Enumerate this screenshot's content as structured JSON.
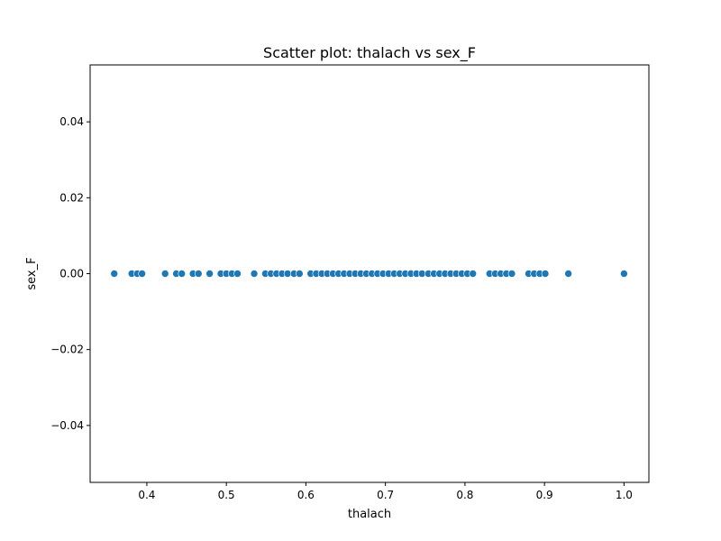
{
  "chart_data": {
    "type": "scatter",
    "title": "Scatter plot: thalach vs sex_F",
    "xlabel": "thalach",
    "ylabel": "sex_F",
    "xlim": [
      0.3287,
      1.0313
    ],
    "ylim": [
      -0.055,
      0.055
    ],
    "xticks": [
      0.4,
      0.5,
      0.6,
      0.7,
      0.8,
      0.9,
      1.0
    ],
    "xtick_labels": [
      "0.4",
      "0.5",
      "0.6",
      "0.7",
      "0.8",
      "0.9",
      "1.0"
    ],
    "yticks": [
      -0.04,
      -0.02,
      0.0,
      0.02,
      0.04
    ],
    "ytick_labels": [
      "−0.04",
      "−0.02",
      "0.00",
      "0.02",
      "0.04"
    ],
    "grid": false,
    "marker_color": "#1f77b4",
    "points": {
      "x": [
        0.359,
        0.381,
        0.388,
        0.394,
        0.423,
        0.437,
        0.444,
        0.458,
        0.465,
        0.479,
        0.493,
        0.5,
        0.507,
        0.514,
        0.535,
        0.549,
        0.556,
        0.563,
        0.57,
        0.577,
        0.585,
        0.592,
        0.606,
        0.613,
        0.62,
        0.627,
        0.634,
        0.641,
        0.648,
        0.655,
        0.662,
        0.669,
        0.676,
        0.683,
        0.69,
        0.697,
        0.704,
        0.711,
        0.718,
        0.725,
        0.732,
        0.739,
        0.746,
        0.754,
        0.761,
        0.768,
        0.775,
        0.782,
        0.789,
        0.796,
        0.803,
        0.81,
        0.831,
        0.838,
        0.845,
        0.852,
        0.859,
        0.88,
        0.887,
        0.894,
        0.901,
        0.93,
        1.0
      ],
      "y": [
        0,
        0,
        0,
        0,
        0,
        0,
        0,
        0,
        0,
        0,
        0,
        0,
        0,
        0,
        0,
        0,
        0,
        0,
        0,
        0,
        0,
        0,
        0,
        0,
        0,
        0,
        0,
        0,
        0,
        0,
        0,
        0,
        0,
        0,
        0,
        0,
        0,
        0,
        0,
        0,
        0,
        0,
        0,
        0,
        0,
        0,
        0,
        0,
        0,
        0,
        0,
        0,
        0,
        0,
        0,
        0,
        0,
        0,
        0,
        0,
        0,
        0,
        0
      ]
    }
  }
}
